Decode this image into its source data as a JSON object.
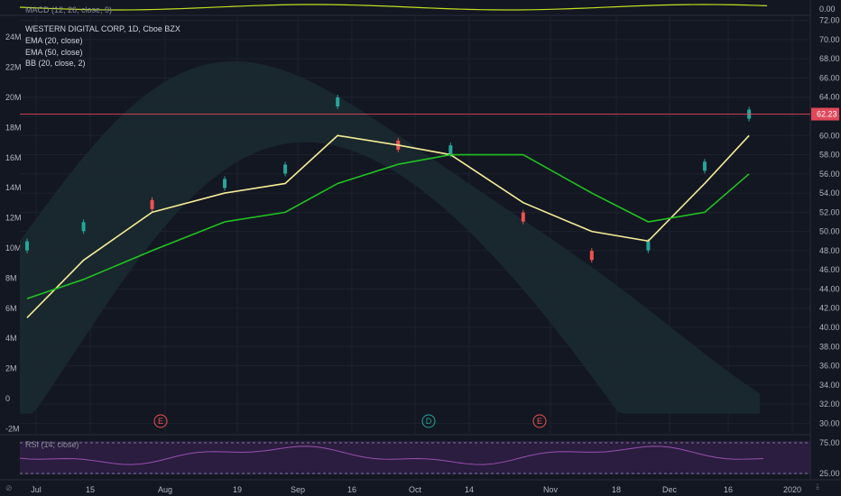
{
  "symbol": {
    "title": "WESTERN DIGITAL CORP, 1D, Cboe BZX",
    "indicators": [
      "EMA (20, close)",
      "EMA (50, close)",
      "BB (20, close, 2)"
    ],
    "last_price_label": "62.23"
  },
  "macd": {
    "label": "MACD (12, 26, close, 9)",
    "axis_label": "0.00"
  },
  "rsi": {
    "label": "RSI (14, close)",
    "levels": [
      "75.00",
      "25.00"
    ]
  },
  "price_axis_labels": [
    "72.00",
    "70.00",
    "68.00",
    "66.00",
    "64.00",
    "62.00",
    "60.00",
    "58.00",
    "56.00",
    "54.00",
    "52.00",
    "50.00",
    "48.00",
    "46.00",
    "44.00",
    "42.00",
    "40.00",
    "38.00",
    "36.00",
    "34.00",
    "32.00",
    "30.00"
  ],
  "volume_axis_labels": [
    "24M",
    "22M",
    "20M",
    "18M",
    "16M",
    "14M",
    "12M",
    "10M",
    "8M",
    "6M",
    "4M",
    "2M",
    "0",
    "-2M"
  ],
  "time_axis_labels": [
    "Jul",
    "15",
    "Aug",
    "19",
    "Sep",
    "16",
    "Oct",
    "14",
    "Nov",
    "18",
    "Dec",
    "16",
    "2020"
  ],
  "event_markers": [
    "E",
    "D",
    "E"
  ],
  "colors": {
    "background": "#131722",
    "up": "#26a69a",
    "down": "#ef5350",
    "ema20": "#f5ec97",
    "ema50": "#21c221",
    "bb_band": "#e8737d",
    "macd": "#c0e020",
    "rsi": "#9b4fb0",
    "last_price": "#e0485a",
    "psar": "#d21e9b"
  },
  "chart_data": {
    "type": "candlestick",
    "title": "WESTERN DIGITAL CORP, 1D, Cboe BZX",
    "y_range": [
      29,
      73
    ],
    "x_range": [
      "2019-07-01",
      "2019-12-31"
    ],
    "candles": [
      {
        "date": "2019-07-01",
        "close": 48.5,
        "color": "up"
      },
      {
        "date": "2019-07-15",
        "close": 50.5,
        "color": "up"
      },
      {
        "date": "2019-08-01",
        "close": 52.8,
        "color": "down"
      },
      {
        "date": "2019-08-19",
        "close": 55.0,
        "color": "up"
      },
      {
        "date": "2019-09-03",
        "close": 56.5,
        "color": "up"
      },
      {
        "date": "2019-09-16",
        "close": 63.5,
        "color": "up"
      },
      {
        "date": "2019-10-01",
        "close": 59.0,
        "color": "down"
      },
      {
        "date": "2019-10-14",
        "close": 58.5,
        "color": "up"
      },
      {
        "date": "2019-11-01",
        "close": 51.5,
        "color": "down"
      },
      {
        "date": "2019-11-18",
        "close": 47.5,
        "color": "down"
      },
      {
        "date": "2019-12-02",
        "close": 48.5,
        "color": "up"
      },
      {
        "date": "2019-12-16",
        "close": 56.8,
        "color": "up"
      },
      {
        "date": "2019-12-27",
        "close": 62.23,
        "color": "up"
      }
    ],
    "series": [
      {
        "name": "EMA (20, close)",
        "values": [
          41,
          47,
          52,
          54,
          55,
          60,
          59,
          58,
          53,
          50,
          49,
          55,
          60
        ]
      },
      {
        "name": "EMA (50, close)",
        "values": [
          43,
          45,
          48,
          51,
          52,
          55,
          57,
          58,
          58,
          54,
          51,
          52,
          56
        ]
      }
    ],
    "rsi_range": [
      0,
      100
    ],
    "macd_axis": "0.00"
  }
}
